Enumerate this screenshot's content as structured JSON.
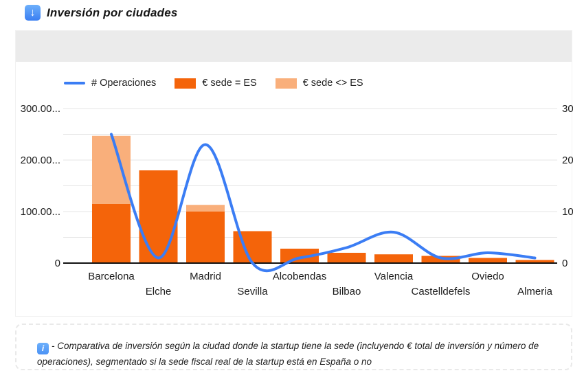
{
  "header": {
    "title": "Inversión por ciudades",
    "icon": "download-arrow-icon",
    "icon_glyph": "↓"
  },
  "chart_data": {
    "type": "combo-bar-line",
    "title": "Inversión por ciudades",
    "stacked_bars": true,
    "grid": true,
    "legend_position": "top",
    "categories": [
      "Barcelona",
      "Elche",
      "Madrid",
      "Sevilla",
      "Alcobendas",
      "Bilbao",
      "Valencia",
      "Castelldefels",
      "Oviedo",
      "Almeria"
    ],
    "series": [
      {
        "name": "# Operaciones",
        "type": "line",
        "axis": "right",
        "color": "#3b7df4",
        "values": [
          25,
          1,
          23,
          0,
          1,
          3,
          6,
          1,
          2,
          1
        ]
      },
      {
        "name": "€ sede = ES",
        "type": "bar",
        "axis": "left",
        "color": "#f4640a",
        "values": [
          115000000,
          180000000,
          100000000,
          62000000,
          28000000,
          20000000,
          17000000,
          14000000,
          10000000,
          6000000
        ]
      },
      {
        "name": "€ sede <> ES",
        "type": "bar",
        "axis": "left",
        "color": "#f9af7b",
        "values": [
          132000000,
          0,
          13000000,
          0,
          0,
          0,
          0,
          0,
          0,
          0
        ]
      }
    ],
    "left_axis": {
      "min": 0,
      "max": 300000000,
      "gridline_step": 50000000,
      "ticks": [
        {
          "v": 0,
          "label": "0"
        },
        {
          "v": 100000000,
          "label": "100.00..."
        },
        {
          "v": 200000000,
          "label": "200.00..."
        },
        {
          "v": 300000000,
          "label": "300.00..."
        }
      ]
    },
    "right_axis": {
      "min": 0,
      "max": 30,
      "ticks": [
        {
          "v": 0,
          "label": "0"
        },
        {
          "v": 10,
          "label": "10"
        },
        {
          "v": 20,
          "label": "20"
        },
        {
          "v": 30,
          "label": "30"
        }
      ]
    },
    "colors": {
      "gridline": "#e4e4e4",
      "axis_line": "#111111",
      "toolbar_gray": "#ebebeb"
    }
  },
  "caption": {
    "icon": "info-icon",
    "icon_glyph": "i",
    "text": "- Comparativa de inversión según la ciudad donde la startup tiene la sede (incluyendo € total de inversión y número de operaciones), segmentado si la sede fiscal real de la startup está en España o no"
  }
}
